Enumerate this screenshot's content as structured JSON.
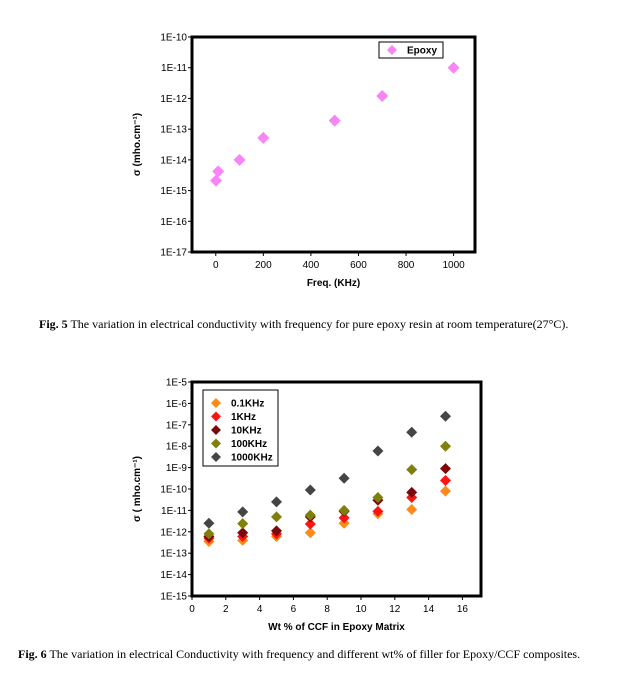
{
  "figures": [
    {
      "caption_label": "Fig. 5",
      "caption_text": "The variation in electrical conductivity with frequency for pure epoxy resin at room temperature(27°C)."
    },
    {
      "caption_label": "Fig. 6",
      "caption_text": "The variation in electrical Conductivity with frequency and different wt% of filler for Epoxy/CCF composites."
    }
  ],
  "chart_data": [
    {
      "type": "scatter",
      "title": "",
      "xlabel": "Freq. (KHz)",
      "ylabel": "σ (mho.cm⁻¹)",
      "xlim": [
        -100,
        1090
      ],
      "ylim": [
        1e-17,
        1e-10
      ],
      "yscale": "log",
      "xticks": [
        0,
        200,
        400,
        600,
        800,
        1000
      ],
      "yticks": [
        "1E-17",
        "1E-16",
        "1E-15",
        "1E-14",
        "1E-13",
        "1E-12",
        "1E-11",
        "1E-10"
      ],
      "legend_position": "top-right",
      "series": [
        {
          "name": "Epoxy",
          "color": "#f984f5",
          "x": [
            1,
            10,
            100,
            200,
            500,
            700,
            1000
          ],
          "y": [
            2.1e-15,
            4.2e-15,
            1e-14,
            5.2e-14,
            1.9e-13,
            1.2e-12,
            1e-11
          ]
        }
      ]
    },
    {
      "type": "scatter",
      "title": "",
      "xlabel": "Wt % of CCF in Epoxy Matrix",
      "ylabel": "σ ( mho.cm⁻¹)",
      "xlim": [
        0,
        17.1
      ],
      "ylim": [
        1e-15,
        1e-05
      ],
      "yscale": "log",
      "xticks": [
        0,
        2,
        4,
        6,
        8,
        10,
        12,
        14,
        16
      ],
      "yticks": [
        "1E-15",
        "1E-14",
        "1E-13",
        "1E-12",
        "1E-11",
        "1E-10",
        "1E-9",
        "1E-8",
        "1E-7",
        "1E-6",
        "1E-5"
      ],
      "legend_position": "top-left",
      "x": [
        1,
        3,
        5,
        7,
        9,
        11,
        13,
        15
      ],
      "series": [
        {
          "name": "0.1KHz",
          "color": "#ff8a14",
          "y": [
            3.5e-13,
            4e-13,
            6e-13,
            9e-13,
            2.5e-12,
            7e-12,
            1.1e-11,
            8e-11
          ]
        },
        {
          "name": "1KHz",
          "color": "#ff1212",
          "y": [
            5e-13,
            6e-13,
            8e-13,
            2.3e-12,
            4.5e-12,
            9e-12,
            4e-11,
            2.5e-10
          ]
        },
        {
          "name": "10KHz",
          "color": "#7a0a0a",
          "y": [
            6e-13,
            9e-13,
            1.1e-12,
            5e-12,
            9e-12,
            3e-11,
            7e-11,
            9e-10
          ]
        },
        {
          "name": "100KHz",
          "color": "#7f7f0a",
          "y": [
            8e-13,
            2.4e-12,
            5e-12,
            6e-12,
            1e-11,
            4e-11,
            8e-10,
            1e-08
          ]
        },
        {
          "name": "1000KHz",
          "color": "#454545",
          "y": [
            2.5e-12,
            8.5e-12,
            2.5e-11,
            9e-11,
            3.2e-10,
            6e-09,
            4.5e-08,
            2.5e-07
          ]
        }
      ]
    }
  ]
}
